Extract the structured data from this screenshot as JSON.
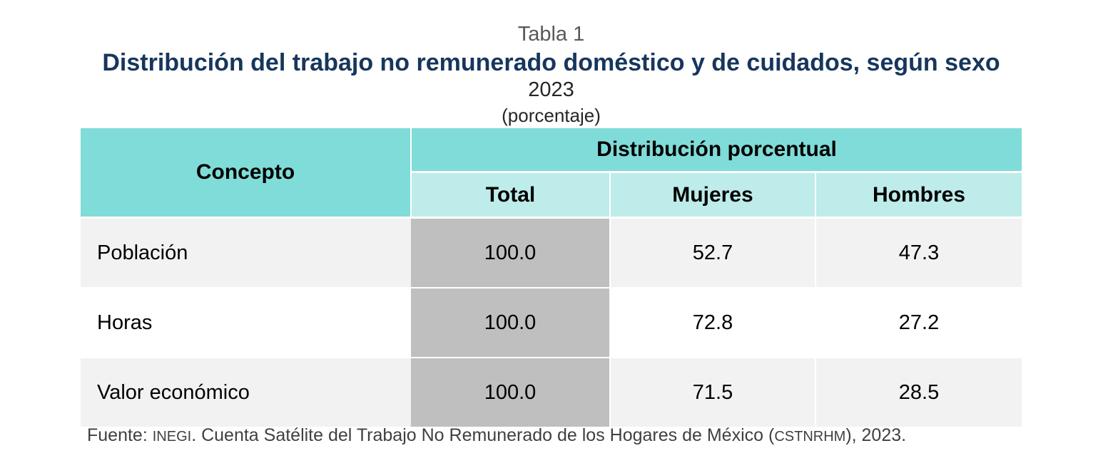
{
  "header": {
    "table_label": "Tabla 1",
    "title": "Distribución del trabajo no remunerado doméstico y de cuidados, según sexo",
    "year": "2023",
    "unit": "(porcentaje)"
  },
  "table": {
    "concept_header": "Concepto",
    "group_header": "Distribución porcentual",
    "columns": [
      "Total",
      "Mujeres",
      "Hombres"
    ],
    "rows": [
      {
        "label": "Población",
        "total": "100.0",
        "mujeres": "52.7",
        "hombres": "47.3"
      },
      {
        "label": "Horas",
        "total": "100.0",
        "mujeres": "72.8",
        "hombres": "27.2"
      },
      {
        "label": "Valor económico",
        "total": "100.0",
        "mujeres": "71.5",
        "hombres": "28.5"
      }
    ]
  },
  "source": {
    "prefix": "Fuente: ",
    "org": "INEGI",
    "middle": ". Cuenta Satélite del Trabajo No Remunerado de los Hogares de México (",
    "acronym": "CSTNRHM",
    "suffix": "), 2023."
  },
  "colors": {
    "title": "#17365d",
    "header_dark": "#80dcd8",
    "header_light": "#bdecea",
    "total_column": "#bfbfbf",
    "row_shade": "#f2f2f2"
  }
}
